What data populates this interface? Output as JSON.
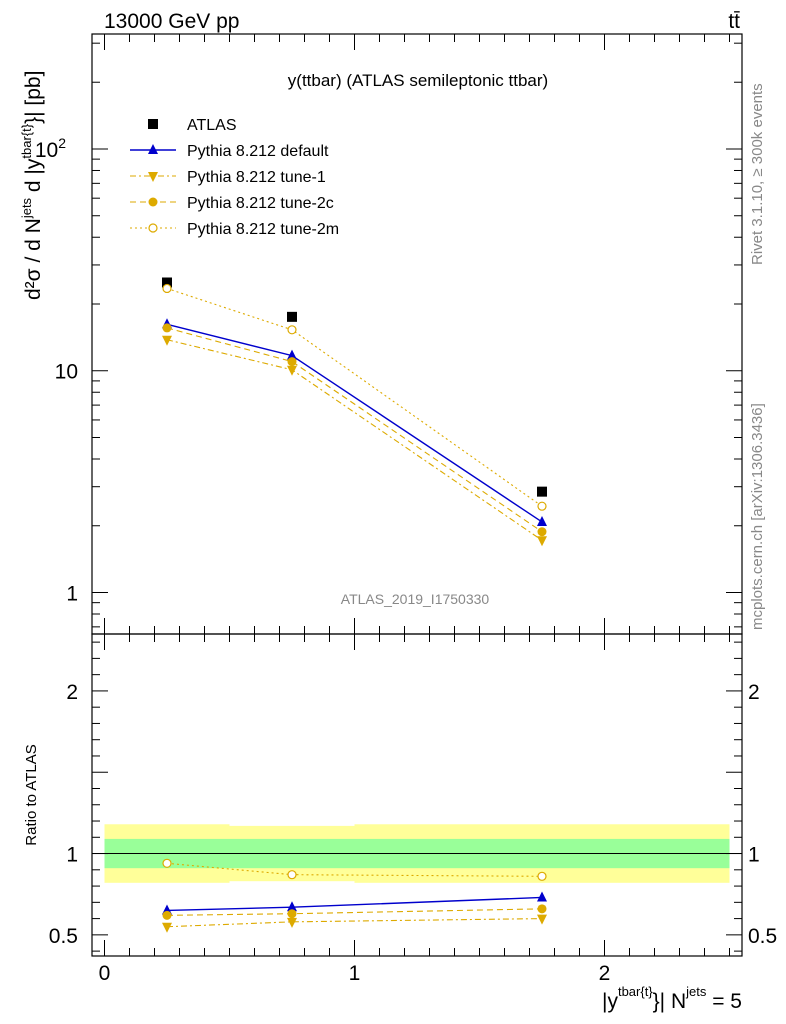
{
  "header": {
    "left": "13000 GeV pp",
    "right": "tt̄"
  },
  "side_text": {
    "rivet": "Rivet 3.1.10, ≥ 300k events",
    "mcplots": "mcplots.cern.ch [arXiv:1306.3436]"
  },
  "colors": {
    "atlas": "#000000",
    "default": "#0000cc",
    "tune": "#ddaa00",
    "band_inner": "#99ff99",
    "band_outer": "#ffff99"
  },
  "chart_data": [
    {
      "type": "line",
      "title": "y(ttbar) (ATLAS semileptonic ttbar)",
      "watermark": "ATLAS_2019_I1750330",
      "ylabel": {
        "main": "d²σ / d N",
        "sup1": "jets",
        "mid": " d |y",
        "sup2": "tbar{t}",
        "tail": "}| [pb]"
      },
      "yscale": "log",
      "ylim": [
        0.65,
        330
      ],
      "xlim": [
        -0.05,
        2.55
      ],
      "yticks": [
        {
          "v": 1,
          "label": "1"
        },
        {
          "v": 10,
          "label": "10"
        },
        {
          "v": 100,
          "label": "10",
          "sup": "2"
        }
      ],
      "legend_position": "top-left",
      "x": [
        0.25,
        0.75,
        1.75
      ],
      "series": [
        {
          "name": "ATLAS",
          "marker": "square-filled",
          "color": "#000000",
          "line": "none",
          "values": [
            25.0,
            17.5,
            2.85
          ]
        },
        {
          "name": "Pythia 8.212 default",
          "marker": "triangle-up",
          "color": "#0000cc",
          "line": "solid",
          "values": [
            16.2,
            11.7,
            2.08
          ]
        },
        {
          "name": "Pythia 8.212 tune-1",
          "marker": "triangle-down",
          "color": "#ddaa00",
          "line": "dashdot",
          "values": [
            13.8,
            10.1,
            1.72
          ]
        },
        {
          "name": "Pythia 8.212 tune-2c",
          "marker": "circle-filled",
          "color": "#ddaa00",
          "line": "dashed",
          "values": [
            15.6,
            11.0,
            1.88
          ]
        },
        {
          "name": "Pythia 8.212 tune-2m",
          "marker": "circle-open",
          "color": "#ddaa00",
          "line": "dotted",
          "values": [
            23.5,
            15.3,
            2.45
          ]
        }
      ]
    },
    {
      "type": "line",
      "ylabel": "Ratio to ATLAS",
      "ylim": [
        0.37,
        2.35
      ],
      "xlim": [
        -0.05,
        2.55
      ],
      "yticks": [
        {
          "v": 0.5,
          "label": "0.5"
        },
        {
          "v": 1,
          "label": "1"
        },
        {
          "v": 2,
          "label": "2"
        }
      ],
      "xticks": [
        {
          "v": 0,
          "label": "0"
        },
        {
          "v": 1,
          "label": "1"
        },
        {
          "v": 2,
          "label": "2"
        }
      ],
      "xlabel": {
        "pre": "|y",
        "sup1": "tbar{t}",
        "mid": "}| N",
        "sup2": "jets",
        "tail": " = 5"
      },
      "bands": {
        "edges": [
          0.0,
          0.5,
          1.0,
          2.5
        ],
        "inner_lo": [
          0.91,
          0.91,
          0.91
        ],
        "inner_hi": [
          1.09,
          1.09,
          1.09
        ],
        "outer_lo": [
          0.82,
          0.83,
          0.82
        ],
        "outer_hi": [
          1.18,
          1.17,
          1.18
        ]
      },
      "x": [
        0.25,
        0.75,
        1.75
      ],
      "series": [
        {
          "name": "Pythia 8.212 default",
          "marker": "triangle-up",
          "color": "#0000cc",
          "line": "solid",
          "values": [
            0.65,
            0.67,
            0.73
          ]
        },
        {
          "name": "Pythia 8.212 tune-1",
          "marker": "triangle-down",
          "color": "#ddaa00",
          "line": "dashdot",
          "values": [
            0.55,
            0.58,
            0.6
          ]
        },
        {
          "name": "Pythia 8.212 tune-2c",
          "marker": "circle-filled",
          "color": "#ddaa00",
          "line": "dashed",
          "values": [
            0.62,
            0.63,
            0.66
          ]
        },
        {
          "name": "Pythia 8.212 tune-2m",
          "marker": "circle-open",
          "color": "#ddaa00",
          "line": "dotted",
          "values": [
            0.94,
            0.87,
            0.86
          ]
        }
      ]
    }
  ]
}
